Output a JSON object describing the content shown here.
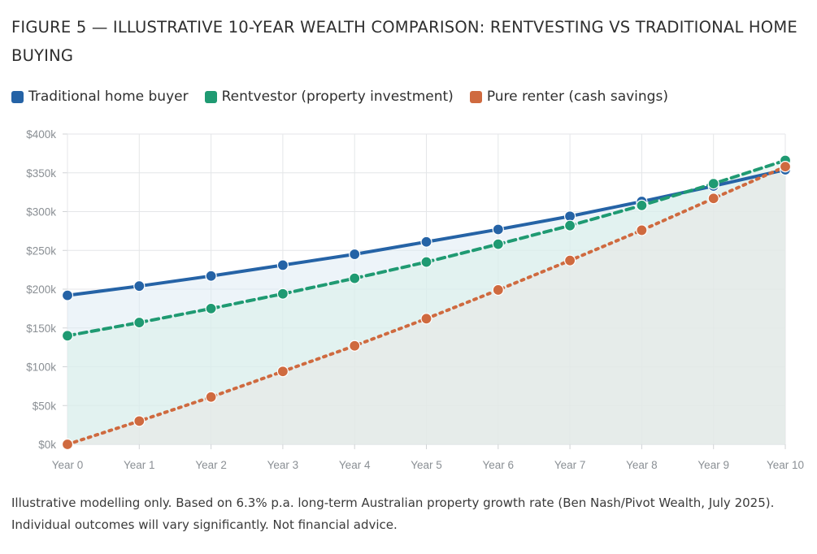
{
  "figure": {
    "title": "FIGURE 5 — ILLUSTRATIVE 10-YEAR WEALTH COMPARISON: RENTVESTING VS TRADITIONAL HOME BUYING",
    "footnote": "Illustrative modelling only. Based on 6.3% p.a. long-term Australian property growth rate (Ben Nash/Pivot Wealth, July 2025). Individual outcomes will vary significantly. Not financial advice."
  },
  "legend": [
    {
      "label": "Traditional home buyer",
      "color": "#2563a6"
    },
    {
      "label": "Rentvestor (property investment)",
      "color": "#1f9a72"
    },
    {
      "label": "Pure renter (cash savings)",
      "color": "#cf6a3f"
    }
  ],
  "chart_data": {
    "type": "line",
    "x": [
      "Year 0",
      "Year 1",
      "Year 2",
      "Year 3",
      "Year 4",
      "Year 5",
      "Year 6",
      "Year 7",
      "Year 8",
      "Year 9",
      "Year 10"
    ],
    "ylim": [
      0,
      400
    ],
    "y_ticks": [
      "$0k",
      "$50k",
      "$100k",
      "$150k",
      "$200k",
      "$250k",
      "$300k",
      "$350k",
      "$400k"
    ],
    "grid": true,
    "series": [
      {
        "name": "Traditional home buyer",
        "color": "#2563a6",
        "style": "solid",
        "fill": "#dce9f3",
        "values": [
          192,
          204,
          217,
          231,
          245,
          261,
          277,
          294,
          313,
          333,
          354
        ]
      },
      {
        "name": "Rentvestor (property investment)",
        "color": "#1f9a72",
        "style": "dashed",
        "fill": "#d8efe8",
        "values": [
          140,
          157,
          175,
          194,
          214,
          235,
          258,
          282,
          308,
          336,
          366
        ]
      },
      {
        "name": "Pure renter (cash savings)",
        "color": "#cf6a3f",
        "style": "dotted",
        "fill": "#e9e6e3",
        "values": [
          0,
          30,
          61,
          94,
          127,
          162,
          199,
          237,
          276,
          317,
          358
        ]
      }
    ]
  }
}
